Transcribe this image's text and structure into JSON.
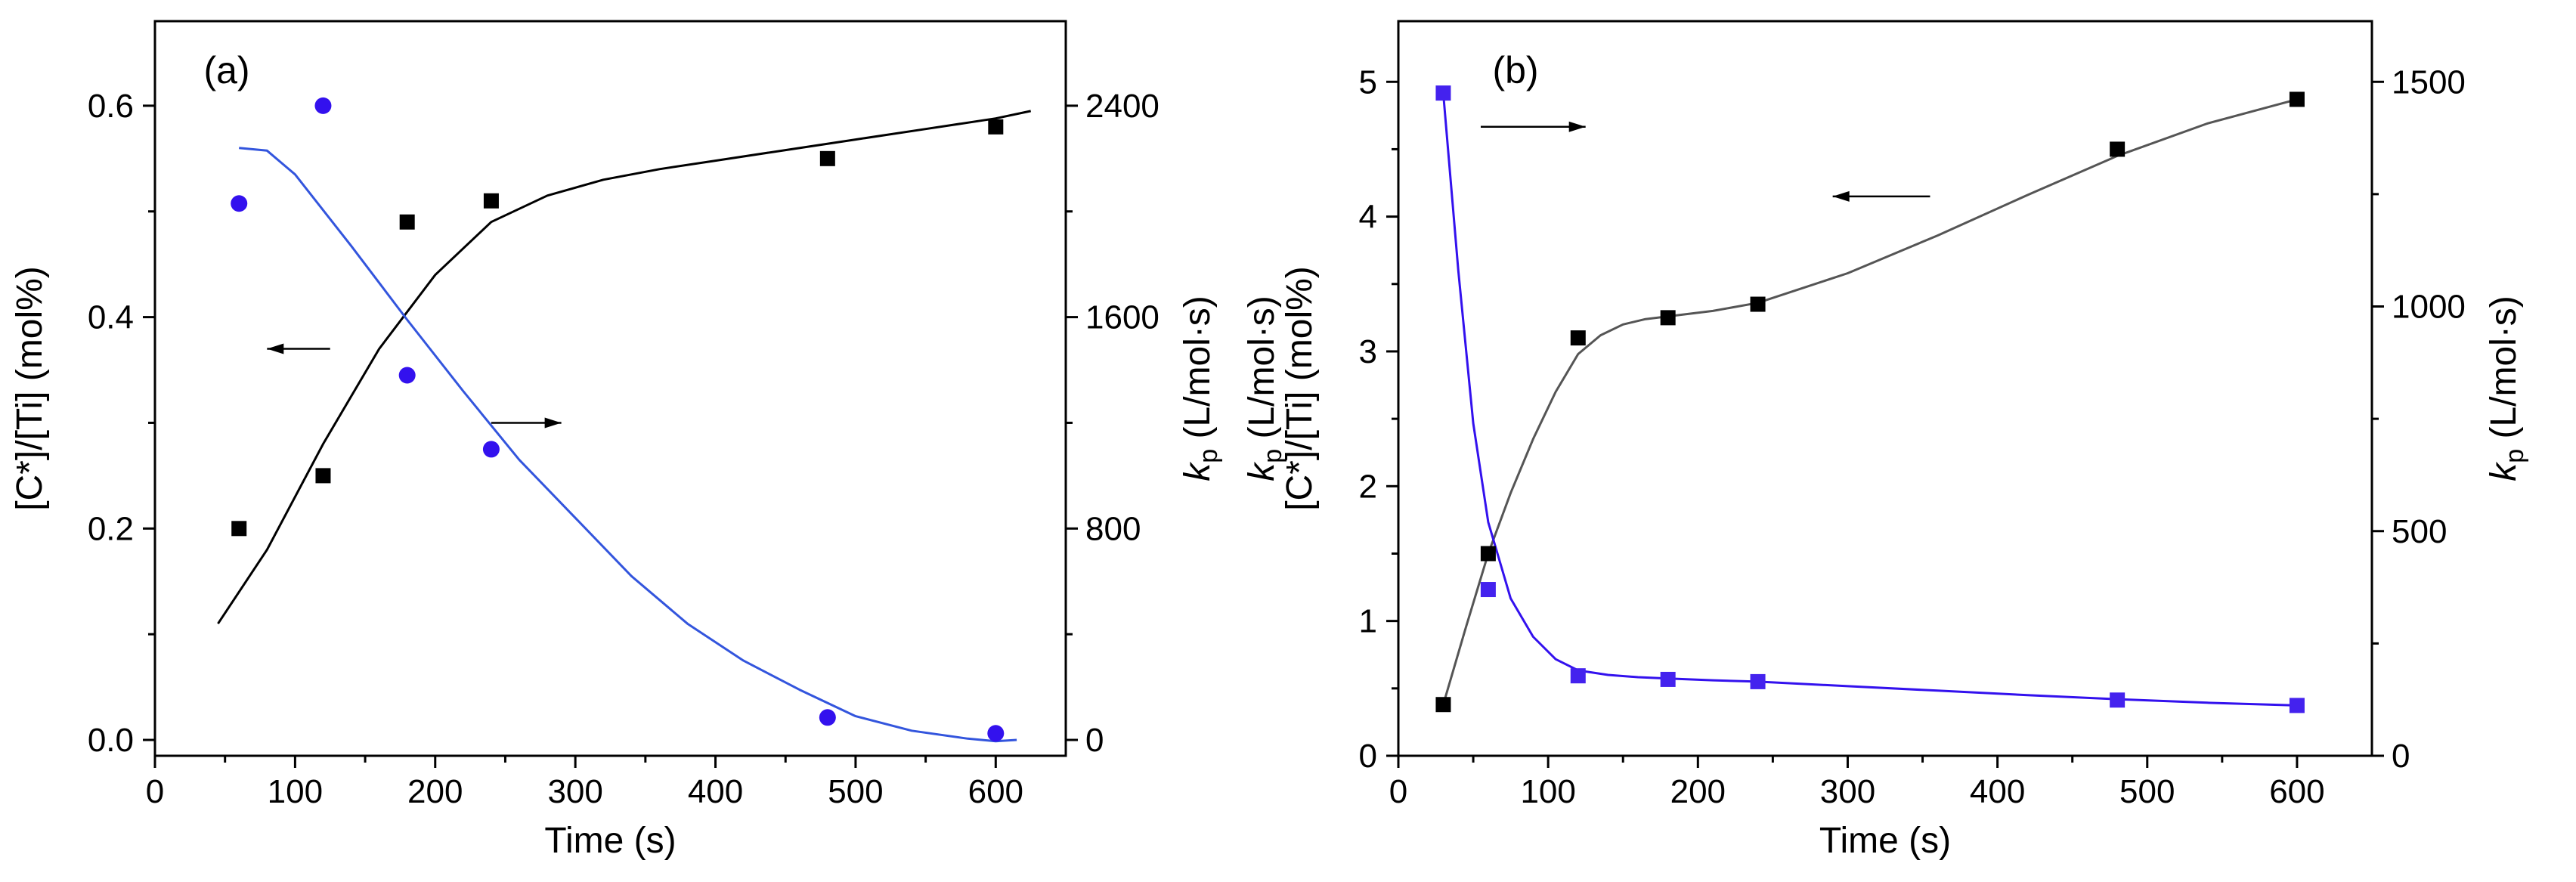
{
  "chart_data": [
    {
      "type": "scatter",
      "panel_label": "(a)",
      "xlabel": "Time (s)",
      "ylabel": "[C*]/[Ti] (mol%)",
      "y2label": "k",
      "y2label_sub": "p",
      "y2label_rest": " (L/mol·s)",
      "xlim": [
        0,
        650
      ],
      "ylim": [
        -0.015,
        0.68
      ],
      "y2lim": [
        -60,
        2720
      ],
      "xticks": [
        0,
        100,
        200,
        300,
        400,
        500,
        600
      ],
      "yticks": [
        0.0,
        0.2,
        0.4,
        0.6
      ],
      "ytick_labels": [
        "0.0",
        "0.2",
        "0.4",
        "0.6"
      ],
      "y2ticks": [
        0,
        800,
        1600,
        2400
      ],
      "series": [
        {
          "name": "[C*]/[Ti]",
          "axis": "left",
          "marker": "square",
          "color": "#000000",
          "x": [
            60,
            120,
            180,
            240,
            480,
            600
          ],
          "y": [
            0.2,
            0.25,
            0.49,
            0.51,
            0.55,
            0.58
          ]
        },
        {
          "name": "kp",
          "axis": "right",
          "marker": "circle",
          "color": "#3311ee",
          "x": [
            60,
            120,
            180,
            240,
            480,
            600
          ],
          "y": [
            2030,
            2400,
            1380,
            1100,
            85,
            25
          ]
        }
      ],
      "fits": [
        {
          "name": "[C*]/[Ti] fit",
          "axis": "left",
          "color": "#000000",
          "x": [
            45,
            80,
            120,
            160,
            200,
            240,
            280,
            320,
            360,
            400,
            450,
            500,
            550,
            600,
            625
          ],
          "y": [
            0.11,
            0.18,
            0.28,
            0.37,
            0.44,
            0.49,
            0.515,
            0.53,
            0.54,
            0.548,
            0.558,
            0.568,
            0.578,
            0.588,
            0.595
          ]
        },
        {
          "name": "kp fit",
          "axis": "right",
          "color": "#3355dd",
          "x": [
            60,
            80,
            100,
            140,
            180,
            220,
            260,
            300,
            340,
            380,
            420,
            460,
            500,
            540,
            580,
            600,
            615
          ],
          "y": [
            2240,
            2230,
            2140,
            1870,
            1590,
            1320,
            1060,
            840,
            620,
            440,
            300,
            190,
            90,
            35,
            5,
            -5,
            0
          ]
        }
      ],
      "arrows": [
        {
          "direction": "left",
          "x_from": 125,
          "x_to": 80,
          "y": 0.37,
          "axis": "left"
        },
        {
          "direction": "right",
          "x_from": 240,
          "x_to": 290,
          "y": 1200,
          "axis": "right"
        }
      ]
    },
    {
      "type": "scatter",
      "panel_label": "(b)",
      "xlabel": "Time (s)",
      "ylabel_top": "k",
      "ylabel_top_sub": "p",
      "ylabel_top_rest": " (L/mol·s)",
      "ylabel": "[C*]/[Ti] (mol%)",
      "y2label": "k",
      "y2label_sub": "p",
      "y2label_rest": " (L/mol·s)",
      "xlim": [
        0,
        650
      ],
      "ylim": [
        0,
        5.45
      ],
      "y2lim": [
        0,
        1635
      ],
      "xticks": [
        0,
        100,
        200,
        300,
        400,
        500,
        600
      ],
      "yticks": [
        0,
        1,
        2,
        3,
        4,
        5
      ],
      "y2ticks": [
        0,
        500,
        1000,
        1500
      ],
      "series": [
        {
          "name": "[C*]/[Ti]",
          "axis": "left",
          "marker": "square",
          "color": "#000000",
          "x": [
            30,
            60,
            120,
            180,
            240,
            480,
            600
          ],
          "y": [
            0.38,
            1.5,
            3.1,
            3.25,
            3.35,
            4.5,
            4.87
          ]
        },
        {
          "name": "kp",
          "axis": "right",
          "marker": "square",
          "color": "#4422ee",
          "x": [
            30,
            60,
            120,
            180,
            240,
            480,
            600
          ],
          "y": [
            1475,
            370,
            178,
            170,
            165,
            124,
            112
          ]
        }
      ],
      "fits": [
        {
          "name": "[C*]/[Ti] fit",
          "axis": "left",
          "color": "#555555",
          "x": [
            30,
            45,
            60,
            75,
            90,
            105,
            120,
            135,
            150,
            165,
            180,
            210,
            240,
            300,
            360,
            420,
            480,
            540,
            600
          ],
          "y": [
            0.38,
            0.95,
            1.5,
            1.95,
            2.35,
            2.7,
            2.98,
            3.12,
            3.2,
            3.24,
            3.26,
            3.3,
            3.36,
            3.58,
            3.86,
            4.16,
            4.45,
            4.69,
            4.87
          ]
        },
        {
          "name": "kp fit",
          "axis": "right",
          "color": "#3311ee",
          "x": [
            30,
            40,
            50,
            60,
            75,
            90,
            105,
            120,
            140,
            160,
            180,
            210,
            240,
            300,
            360,
            420,
            480,
            540,
            600
          ],
          "y": [
            1475,
            1080,
            740,
            520,
            350,
            265,
            215,
            190,
            180,
            175,
            172,
            168,
            165,
            155,
            145,
            135,
            126,
            118,
            112
          ]
        }
      ],
      "arrows": [
        {
          "direction": "right",
          "x_from": 55,
          "x_to": 125,
          "y": 1400,
          "axis": "right"
        },
        {
          "direction": "left",
          "x_from": 355,
          "x_to": 290,
          "y": 4.15,
          "axis": "left"
        }
      ]
    }
  ]
}
